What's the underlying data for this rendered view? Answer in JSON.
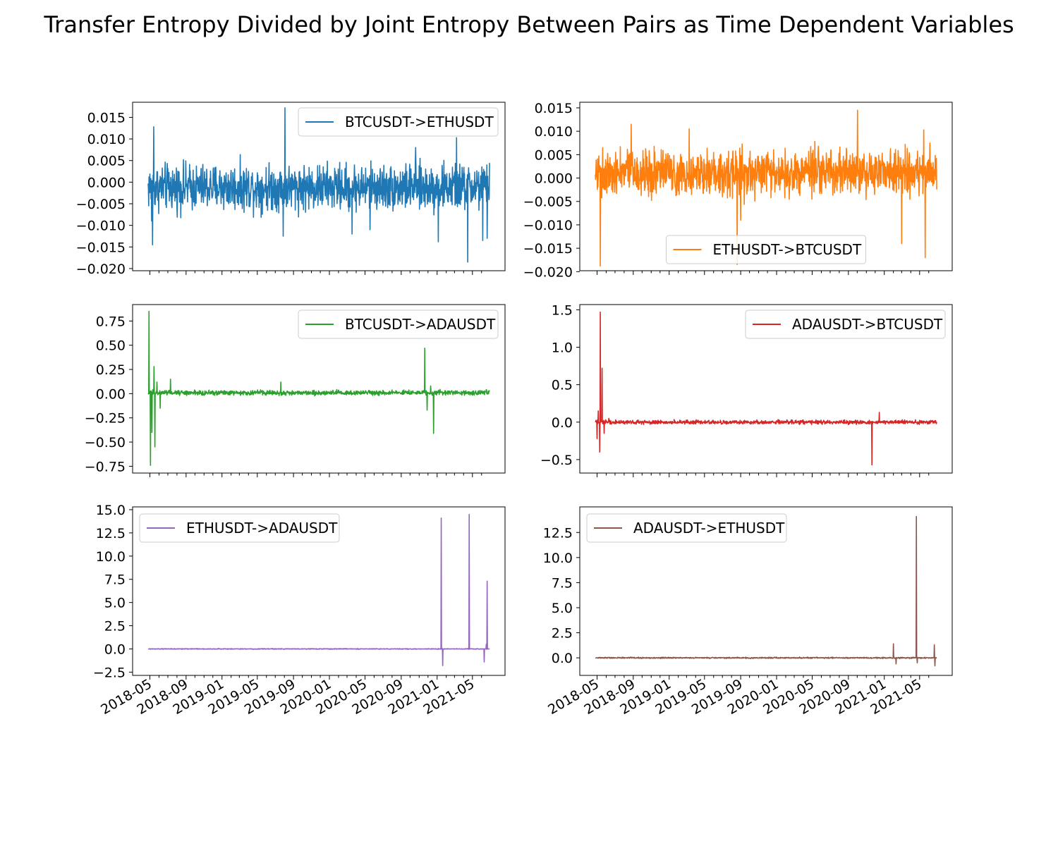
{
  "title": "Transfer Entropy Divided by Joint Entropy Between Pairs as Time Dependent Variables",
  "chart_data": [
    {
      "type": "line",
      "series": [
        {
          "name": "BTCUSDT->ETHUSDT",
          "color": "#1f77b4"
        }
      ],
      "legend": "upper right",
      "ylim": [
        -0.0205,
        0.0185
      ],
      "yticks": [
        0.015,
        0.01,
        0.005,
        0.0,
        -0.005,
        -0.01,
        -0.015,
        -0.02
      ],
      "ytick_labels": [
        "0.015",
        "0.010",
        "0.005",
        "0.000",
        "−0.005",
        "−0.010",
        "−0.015",
        "−0.020"
      ],
      "noise": 0.0026,
      "base": -0.0012,
      "spikes": [
        [
          "2018-05-10",
          -0.0145
        ],
        [
          "2018-05-14",
          0.0128
        ],
        [
          "2018-05-07",
          -0.009
        ],
        [
          "2019-07-28",
          -0.0125
        ],
        [
          "2019-08-03",
          0.0172
        ],
        [
          "2020-03-18",
          -0.012
        ],
        [
          "2020-05-18",
          -0.011
        ],
        [
          "2021-01-05",
          -0.0138
        ],
        [
          "2021-03-08",
          0.0103
        ],
        [
          "2021-04-15",
          -0.0185
        ],
        [
          "2021-06-05",
          -0.0135
        ],
        [
          "2021-06-20",
          -0.013
        ],
        [
          "2020-10-20",
          0.008
        ]
      ]
    },
    {
      "type": "line",
      "series": [
        {
          "name": "ETHUSDT->BTCUSDT",
          "color": "#ff7f0e"
        }
      ],
      "legend": "lower center",
      "ylim": [
        -0.0198,
        0.0162
      ],
      "yticks": [
        0.015,
        0.01,
        0.005,
        0.0,
        -0.005,
        -0.01,
        -0.015,
        -0.02
      ],
      "ytick_labels": [
        "0.015",
        "0.010",
        "0.005",
        "0.000",
        "−0.005",
        "−0.010",
        "−0.015",
        "−0.020"
      ],
      "noise": 0.0024,
      "base": 0.0012,
      "spikes": [
        [
          "2018-05-12",
          -0.0188
        ],
        [
          "2018-05-20",
          0.0065
        ],
        [
          "2018-08-25",
          0.0115
        ],
        [
          "2019-03-10",
          0.0105
        ],
        [
          "2019-08-20",
          -0.0185
        ],
        [
          "2019-09-01",
          -0.009
        ],
        [
          "2020-10-02",
          0.0145
        ],
        [
          "2021-03-01",
          -0.014
        ],
        [
          "2021-05-20",
          -0.017
        ],
        [
          "2021-05-15",
          0.0103
        ],
        [
          "2021-06-05",
          0.0075
        ]
      ]
    },
    {
      "type": "line",
      "series": [
        {
          "name": "BTCUSDT->ADAUSDT",
          "color": "#2ca02c"
        }
      ],
      "legend": "upper right",
      "ylim": [
        -0.82,
        0.92
      ],
      "yticks": [
        0.75,
        0.5,
        0.25,
        0.0,
        -0.25,
        -0.5,
        -0.75
      ],
      "ytick_labels": [
        "0.75",
        "0.50",
        "0.25",
        "0.00",
        "−0.25",
        "−0.50",
        "−0.75"
      ],
      "noise": 0.012,
      "base": 0.01,
      "spikes": [
        [
          "2018-04-28",
          0.85
        ],
        [
          "2018-05-03",
          -0.74
        ],
        [
          "2018-05-08",
          -0.4
        ],
        [
          "2018-05-15",
          0.28
        ],
        [
          "2018-05-18",
          -0.55
        ],
        [
          "2018-05-25",
          0.12
        ],
        [
          "2018-06-05",
          -0.15
        ],
        [
          "2018-07-10",
          0.15
        ],
        [
          "2019-07-20",
          0.12
        ],
        [
          "2020-11-20",
          0.47
        ],
        [
          "2020-11-28",
          -0.17
        ],
        [
          "2020-12-20",
          -0.41
        ],
        [
          "2020-12-10",
          0.08
        ]
      ]
    },
    {
      "type": "line",
      "series": [
        {
          "name": "ADAUSDT->BTCUSDT",
          "color": "#d62728"
        }
      ],
      "legend": "upper right",
      "ylim": [
        -0.68,
        1.57
      ],
      "yticks": [
        1.5,
        1.0,
        0.5,
        0.0,
        -0.5
      ],
      "ytick_labels": [
        "1.5",
        "1.0",
        "0.5",
        "0.0",
        "−0.5"
      ],
      "noise": 0.013,
      "base": 0.0,
      "spikes": [
        [
          "2018-05-01",
          -0.22
        ],
        [
          "2018-05-05",
          0.15
        ],
        [
          "2018-05-10",
          -0.4
        ],
        [
          "2018-05-12",
          1.47
        ],
        [
          "2018-05-18",
          0.72
        ],
        [
          "2018-05-25",
          -0.15
        ],
        [
          "2018-06-10",
          0.05
        ],
        [
          "2020-11-20",
          -0.57
        ],
        [
          "2020-12-15",
          0.13
        ]
      ]
    },
    {
      "type": "line",
      "series": [
        {
          "name": "ETHUSDT->ADAUSDT",
          "color": "#9467bd"
        }
      ],
      "legend": "upper left",
      "ylim": [
        -2.85,
        15.3
      ],
      "yticks": [
        15.0,
        12.5,
        10.0,
        7.5,
        5.0,
        2.5,
        0.0,
        -2.5
      ],
      "ytick_labels": [
        "15.0",
        "12.5",
        "10.0",
        "7.5",
        "5.0",
        "2.5",
        "0.0",
        "−2.5"
      ],
      "noise": 0.02,
      "base": 0.0,
      "spikes": [
        [
          "2021-01-15",
          14.1
        ],
        [
          "2021-01-20",
          -1.8
        ],
        [
          "2021-04-20",
          14.5
        ],
        [
          "2021-06-10",
          -1.4
        ],
        [
          "2021-06-20",
          7.3
        ],
        [
          "2021-06-17",
          0.5
        ]
      ]
    },
    {
      "type": "line",
      "series": [
        {
          "name": "ADAUSDT->ETHUSDT",
          "color": "#8c564b"
        }
      ],
      "legend": "upper left",
      "ylim": [
        -1.75,
        15.05
      ],
      "yticks": [
        12.5,
        10.0,
        7.5,
        5.0,
        2.5,
        0.0
      ],
      "ytick_labels": [
        "12.5",
        "10.0",
        "7.5",
        "5.0",
        "2.5",
        "0.0"
      ],
      "noise": 0.03,
      "base": 0.0,
      "spikes": [
        [
          "2021-02-01",
          1.4
        ],
        [
          "2021-02-10",
          -0.6
        ],
        [
          "2021-04-20",
          14.1
        ],
        [
          "2021-04-23",
          -0.5
        ],
        [
          "2021-06-20",
          1.3
        ],
        [
          "2021-06-22",
          -0.8
        ]
      ]
    }
  ],
  "x_axis": {
    "start": "2018-04-25",
    "end": "2021-06-28",
    "tick_labels": [
      "2018-05",
      "2018-09",
      "2019-01",
      "2019-05",
      "2019-09",
      "2020-01",
      "2020-05",
      "2020-09",
      "2021-01",
      "2021-05"
    ]
  }
}
